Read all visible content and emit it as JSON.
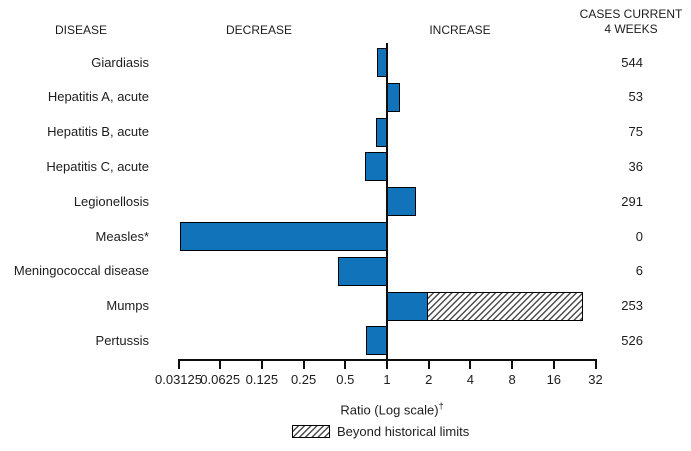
{
  "header": {
    "disease": "DISEASE",
    "decrease": "DECREASE",
    "increase": "INCREASE",
    "cases_line1": "CASES CURRENT",
    "cases_line2": "4 WEEKS"
  },
  "chart_data": {
    "type": "bar",
    "orientation": "horizontal",
    "scale": "log2",
    "baseline": 1,
    "xlabel": "Ratio (Log scale)",
    "xlabel_note_symbol": "†",
    "xlim": [
      0.03125,
      32
    ],
    "x_ticks": [
      0.03125,
      0.0625,
      0.125,
      0.25,
      0.5,
      1,
      2,
      4,
      8,
      16,
      32
    ],
    "x_tick_labels": [
      "0.03125",
      "0.0625",
      "0.125",
      "0.25",
      "0.5",
      "1",
      "2",
      "4",
      "8",
      "16",
      "32"
    ],
    "legend": [
      {
        "label": "Beyond historical limits",
        "pattern": "hatched"
      }
    ],
    "colors": {
      "bar_fill": "#1173b9",
      "bar_border": "#000000",
      "text": "#1d1d1f"
    },
    "rows": [
      {
        "disease": "Giardiasis",
        "ratio": 0.85,
        "cases_current_4_weeks": "544"
      },
      {
        "disease": "Hepatitis A, acute",
        "ratio": 1.24,
        "cases_current_4_weeks": "53"
      },
      {
        "disease": "Hepatitis B, acute",
        "ratio": 0.83,
        "cases_current_4_weeks": "75"
      },
      {
        "disease": "Hepatitis C, acute",
        "ratio": 0.69,
        "cases_current_4_weeks": "36"
      },
      {
        "disease": "Legionellosis",
        "ratio": 1.62,
        "cases_current_4_weeks": "291"
      },
      {
        "disease": "Measles*",
        "ratio": 0.032,
        "cases_current_4_weeks": "0"
      },
      {
        "disease": "Meningococcal disease",
        "ratio": 0.44,
        "cases_current_4_weeks": "6"
      },
      {
        "disease": "Mumps",
        "ratio": 26,
        "beyond_historical_from": 2,
        "cases_current_4_weeks": "253"
      },
      {
        "disease": "Pertussis",
        "ratio": 0.7,
        "cases_current_4_weeks": "526"
      }
    ]
  }
}
